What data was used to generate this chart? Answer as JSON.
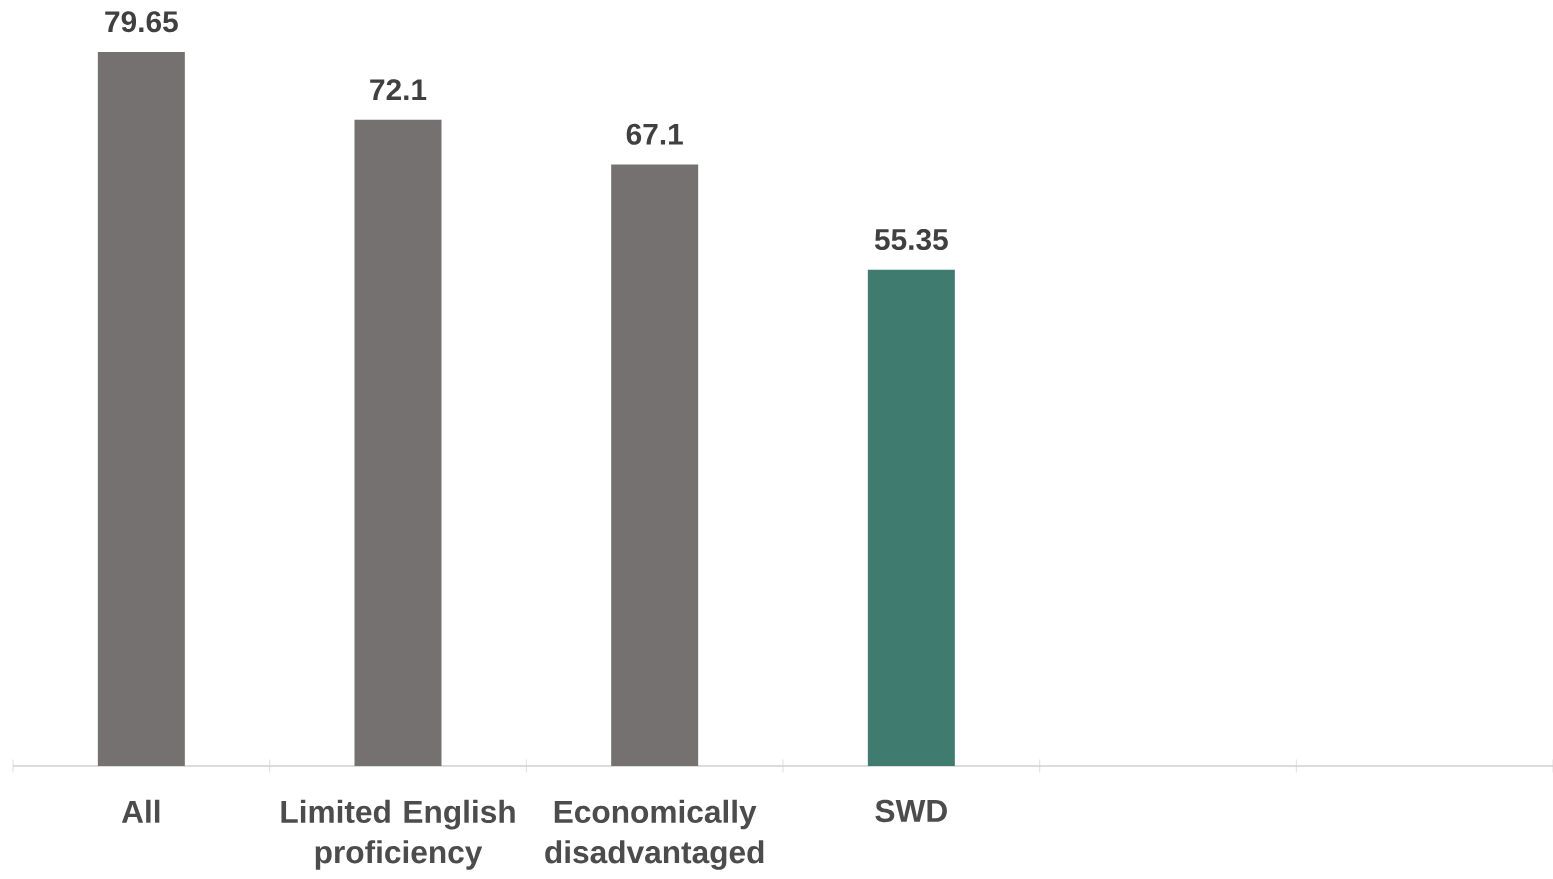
{
  "chart_data": {
    "type": "bar",
    "categories": [
      "All",
      "Limited English proficiency",
      "Economically disadvantaged",
      "SWD",
      null,
      null
    ],
    "values": [
      79.65,
      72.1,
      67.1,
      55.35,
      null,
      null
    ],
    "colors": [
      "#767171",
      "#767171",
      "#767171",
      "#3f7b6e",
      null,
      null
    ],
    "data_labels": true
  }
}
